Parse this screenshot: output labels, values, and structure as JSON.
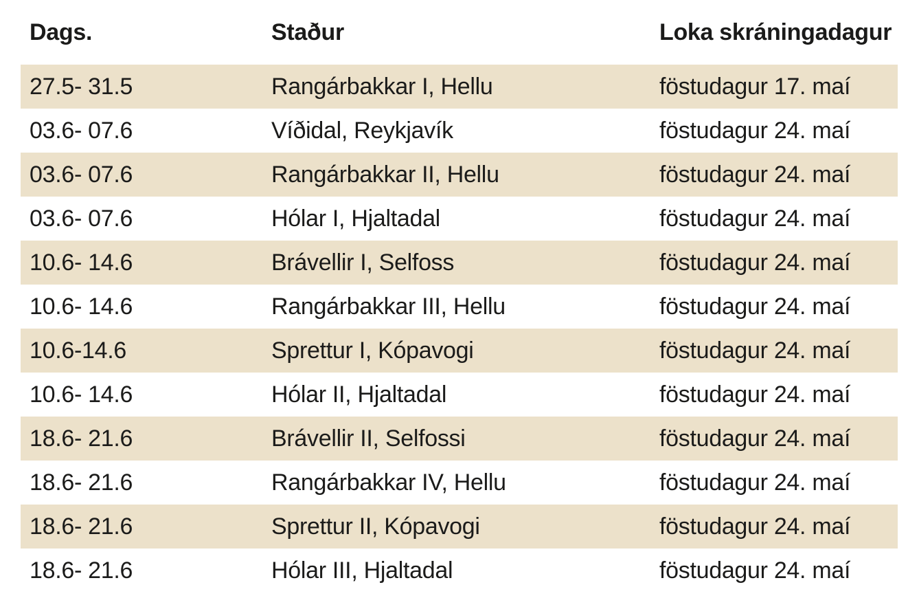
{
  "colors": {
    "stripe_beige": "#ece1ca",
    "row_white": "#ffffff",
    "text": "#1b1b1a"
  },
  "table": {
    "columns": [
      {
        "key": "dags",
        "label": "Dags."
      },
      {
        "key": "stadur",
        "label": "Staður"
      },
      {
        "key": "loka",
        "label": "Loka skráningadagur"
      }
    ],
    "rows": [
      {
        "dags": "27.5- 31.5",
        "stadur": "Rangárbakkar I, Hellu",
        "loka": "föstudagur 17. maí"
      },
      {
        "dags": "03.6- 07.6",
        "stadur": "Víðidal, Reykjavík",
        "loka": "föstudagur 24. maí"
      },
      {
        "dags": "03.6- 07.6",
        "stadur": "Rangárbakkar II, Hellu",
        "loka": "föstudagur 24. maí"
      },
      {
        "dags": "03.6- 07.6",
        "stadur": "Hólar I, Hjaltadal",
        "loka": "föstudagur 24. maí"
      },
      {
        "dags": "10.6- 14.6",
        "stadur": "Brávellir I, Selfoss",
        "loka": "föstudagur 24. maí"
      },
      {
        "dags": "10.6- 14.6",
        "stadur": "Rangárbakkar III, Hellu",
        "loka": "föstudagur 24. maí"
      },
      {
        "dags": "10.6-14.6",
        "stadur": "Sprettur I, Kópavogi",
        "loka": "föstudagur 24. maí"
      },
      {
        "dags": "10.6- 14.6",
        "stadur": "Hólar II, Hjaltadal",
        "loka": "föstudagur 24. maí"
      },
      {
        "dags": "18.6- 21.6",
        "stadur": "Brávellir II, Selfossi",
        "loka": "föstudagur 24. maí"
      },
      {
        "dags": "18.6- 21.6",
        "stadur": "Rangárbakkar IV, Hellu",
        "loka": "föstudagur 24. maí"
      },
      {
        "dags": "18.6- 21.6",
        "stadur": "Sprettur II, Kópavogi",
        "loka": "föstudagur 24. maí"
      },
      {
        "dags": "18.6- 21.6",
        "stadur": "Hólar III, Hjaltadal",
        "loka": "föstudagur 24. maí"
      }
    ]
  }
}
